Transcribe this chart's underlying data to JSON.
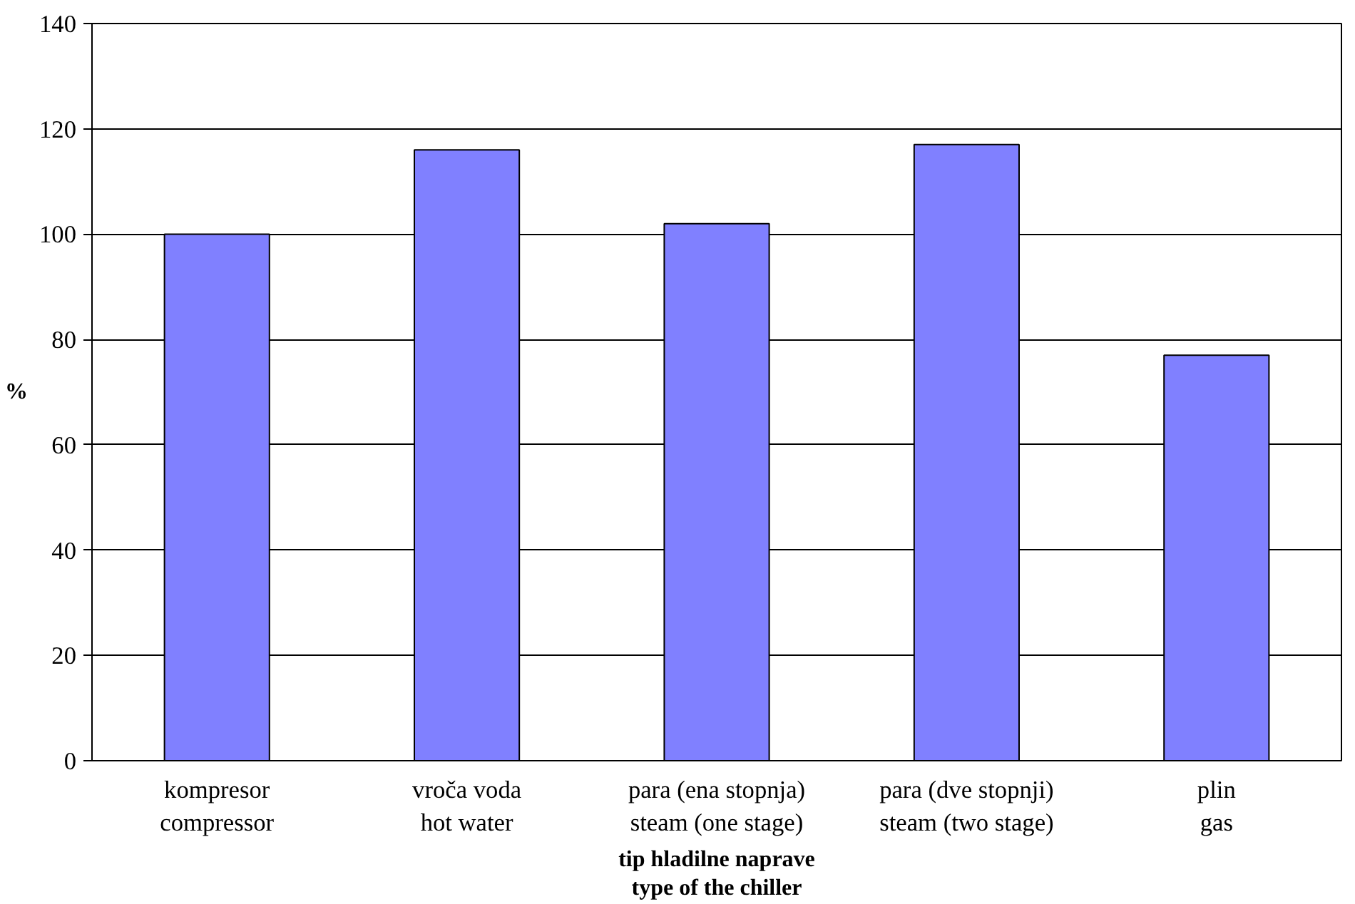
{
  "chart_data": {
    "type": "bar",
    "xlabel": "tip hladilne naprave\ntype of the chiller",
    "ylabel": "%",
    "categories": [
      "kompresor\ncompressor",
      "vroča voda\nhot water",
      "para (ena stopnja)\nsteam (one stage)",
      "para (dve stopnji)\nsteam (two stage)",
      "plin\ngas"
    ],
    "values": [
      100,
      116,
      102,
      117,
      77
    ],
    "color": "#8080ff",
    "ylim": [
      0,
      140
    ],
    "yticks": [
      0,
      20,
      40,
      60,
      80,
      100,
      120,
      140
    ],
    "grid": "y"
  }
}
